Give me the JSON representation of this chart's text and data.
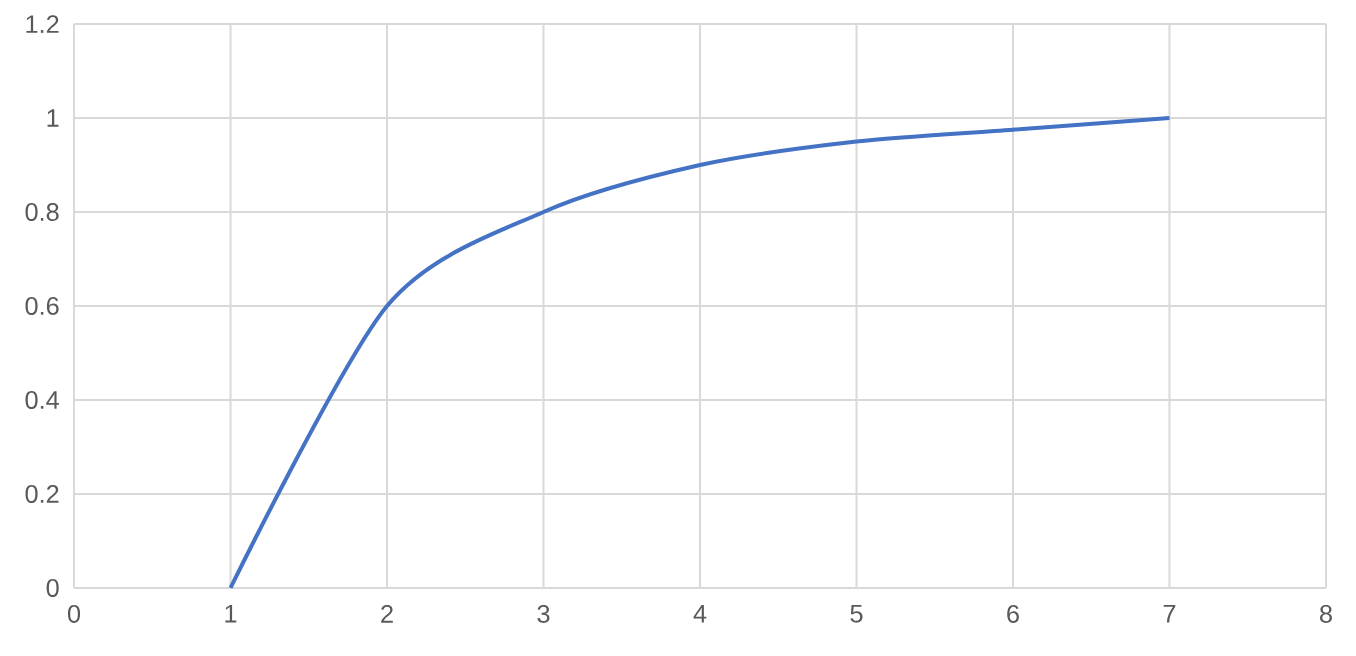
{
  "chart_data": {
    "type": "line",
    "x": [
      1,
      2,
      3,
      4,
      5,
      6,
      7
    ],
    "series": [
      {
        "color": "#4472c4",
        "values": [
          0,
          0.6,
          0.8,
          0.9,
          0.95,
          0.975,
          1
        ]
      }
    ],
    "xlim": [
      0,
      8
    ],
    "xticks": [
      0,
      1,
      2,
      3,
      4,
      5,
      6,
      7,
      8
    ],
    "ylim": [
      0,
      1.2
    ],
    "yticks": [
      0,
      0.2,
      0.4,
      0.6,
      0.8,
      1,
      1.2
    ],
    "grid": true,
    "marker": "none",
    "line_style": "solid"
  }
}
